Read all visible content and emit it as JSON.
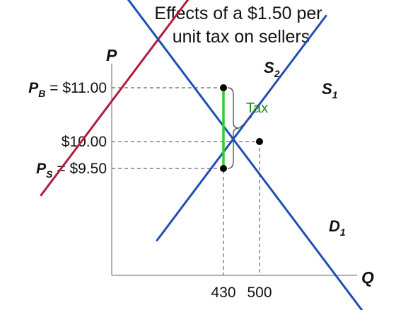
{
  "chart_data": {
    "type": "line",
    "title_line1": "Effects of a $1.50 per",
    "title_line2": "unit tax on sellers",
    "xlabel": "Q",
    "ylabel": "P",
    "x_ticks": [
      "430",
      "500"
    ],
    "y_ticks": [
      {
        "prefix": "P",
        "sub": "B",
        "text": " = $11.00",
        "value": 11.0
      },
      {
        "prefix": "",
        "sub": "",
        "text": "$10.00",
        "value": 10.0
      },
      {
        "prefix": "P",
        "sub": "S",
        "text": " = $9.50",
        "value": 9.5
      }
    ],
    "series": [
      {
        "name": "S",
        "subscript": "1",
        "color": "#1f4fb4",
        "points": [
          [
            300,
            8.15
          ],
          [
            630,
            12.35
          ]
        ]
      },
      {
        "name": "S",
        "subscript": "2",
        "color": "#b01e3c",
        "points": [
          [
            75,
            8.99
          ],
          [
            370,
            12.75
          ]
        ]
      },
      {
        "name": "D",
        "subscript": "1",
        "color": "#1f4fb4",
        "points": [
          [
            205,
            13.15
          ],
          [
            700,
            6.85
          ]
        ]
      }
    ],
    "equilibria": [
      {
        "q": 430,
        "p": 11.0
      },
      {
        "q": 500,
        "p": 10.0
      },
      {
        "q": 430,
        "p": 9.5
      }
    ],
    "tax": {
      "label": "Tax",
      "amount": 1.5,
      "q": 430,
      "color": "#33cc33"
    }
  }
}
